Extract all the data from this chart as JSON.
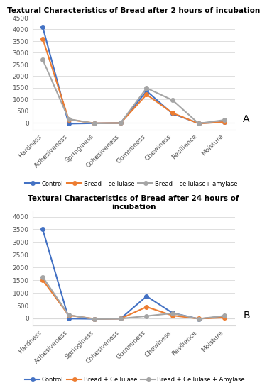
{
  "categories": [
    "Hardness",
    "Adhesiveness",
    "Springiness",
    "Cohesiveness",
    "Gumminess",
    "Chewiness",
    "Resilience",
    "Moisture"
  ],
  "chart_A": {
    "title": "Textural Characteristics of Bread after 2 hours of incubation",
    "control": [
      4100,
      -50,
      -30,
      -20,
      1350,
      380,
      -30,
      20
    ],
    "bread_cellulase": [
      3600,
      130,
      -30,
      -20,
      1200,
      410,
      -40,
      20
    ],
    "bread_cellulase_amylase": [
      2700,
      150,
      -40,
      -20,
      1480,
      960,
      -40,
      110
    ],
    "legend_labels": [
      "Control",
      "Bread+ cellulase",
      "Bread+ cellulase+ amylase"
    ],
    "ylim": [
      -300,
      4600
    ],
    "yticks": [
      0,
      500,
      1000,
      1500,
      2000,
      2500,
      3000,
      3500,
      4000,
      4500
    ],
    "label": "A"
  },
  "chart_B": {
    "title": "Textural Characteristics of Bread after 24 hours of\nincubation",
    "control": [
      3500,
      -20,
      -30,
      -20,
      860,
      200,
      -30,
      60
    ],
    "bread_cellulase": [
      1500,
      110,
      -30,
      -20,
      440,
      100,
      -20,
      20
    ],
    "bread_cellulase_amylase": [
      1620,
      120,
      -40,
      -20,
      80,
      190,
      -30,
      90
    ],
    "legend_labels": [
      "Control",
      "Bread + Cellulase",
      "Bread + Cellulase + Amylase"
    ],
    "ylim": [
      -300,
      4200
    ],
    "yticks": [
      0,
      500,
      1000,
      1500,
      2000,
      2500,
      3000,
      3500,
      4000
    ],
    "label": "B"
  },
  "colors": {
    "control": "#4472C4",
    "bread_cellulase": "#ED7D31",
    "bread_cellulase_amylase": "#A5A5A5"
  },
  "marker": "o",
  "linewidth": 1.5,
  "markersize": 4,
  "tick_fontsize": 6.5,
  "title_fontsize": 7.5,
  "legend_fontsize": 6,
  "grid_color": "#D9D9D9",
  "spine_color": "#D9D9D9"
}
